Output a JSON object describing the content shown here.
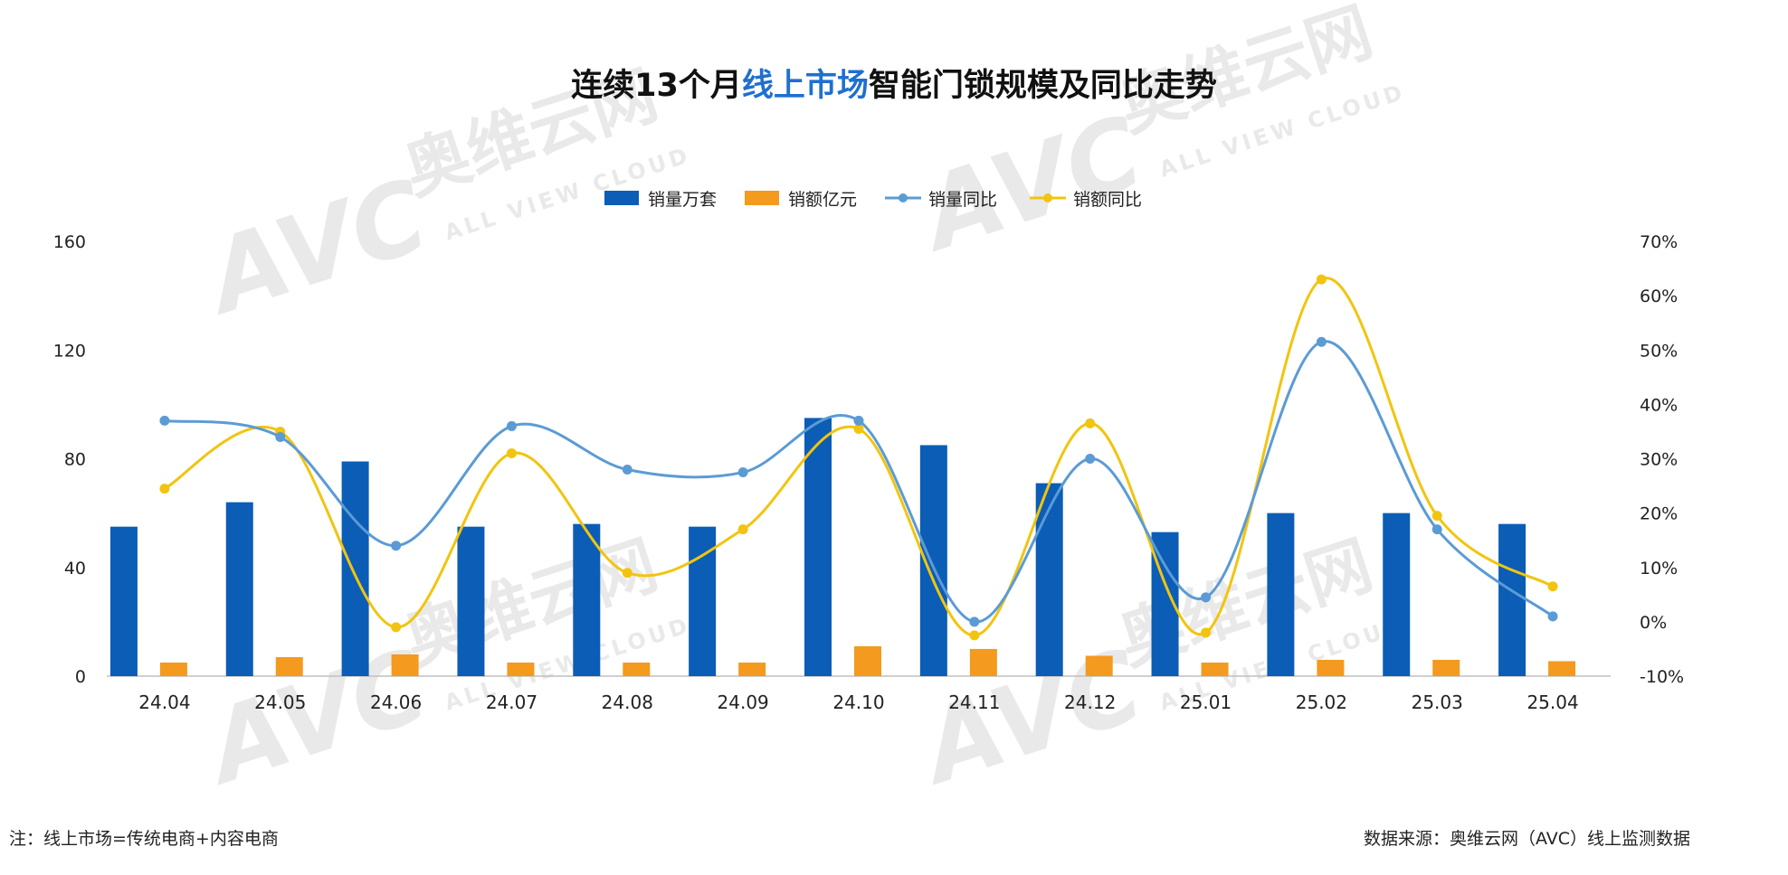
{
  "watermark": {
    "logo_text": "AVC",
    "cn_name": "奥维云网",
    "en_name": "ALL VIEW CLOUD"
  },
  "title": {
    "prefix": "连续13个月",
    "highlight": "线上市场",
    "suffix": "智能门锁规模及同比走势",
    "highlight_color": "#1f6fd0",
    "color": "#111111"
  },
  "footer": {
    "note": "注：线上市场=传统电商+内容电商",
    "source": "数据来源：奥维云网（AVC）线上监测数据"
  },
  "colors": {
    "vol_bar": "#0b5db6",
    "amt_bar": "#f39a1f",
    "vol_yoy": "#5b9bd5",
    "amt_yoy": "#f2c40f",
    "axis_text": "#222222",
    "axis_line": "#bfbfbf"
  },
  "chart_data": {
    "type": "bar",
    "categories": [
      "24.04",
      "24.05",
      "24.06",
      "24.07",
      "24.08",
      "24.09",
      "24.10",
      "24.11",
      "24.12",
      "25.01",
      "25.02",
      "25.03",
      "25.04"
    ],
    "ylim_left": [
      0,
      160
    ],
    "yticks_left": [
      0,
      40,
      80,
      120,
      160
    ],
    "ylim_right": [
      -10,
      70
    ],
    "yticks_right": [
      -10,
      0,
      10,
      20,
      30,
      40,
      50,
      60,
      70
    ],
    "yticks_right_format": "%",
    "legend_position": "top-center",
    "grid": false,
    "series": [
      {
        "name": "销量万套",
        "kind": "bar",
        "axis": "left",
        "values": [
          55,
          64,
          79,
          55,
          56,
          55,
          95,
          85,
          71,
          53,
          60,
          60,
          56
        ]
      },
      {
        "name": "销额亿元",
        "kind": "bar",
        "axis": "left",
        "values": [
          5,
          7,
          8,
          5,
          5,
          5,
          11,
          10,
          7.5,
          5,
          6,
          6,
          5.5
        ]
      },
      {
        "name": "销量同比",
        "kind": "line",
        "axis": "right",
        "values": [
          37,
          34,
          14,
          36,
          28,
          27.5,
          37,
          0,
          30,
          4.5,
          51.5,
          17,
          1
        ]
      },
      {
        "name": "销额同比",
        "kind": "line",
        "axis": "right",
        "values": [
          24.5,
          35,
          -1,
          31,
          9,
          17,
          35.5,
          -2.5,
          36.5,
          -2,
          63,
          19.5,
          6.5
        ]
      }
    ]
  }
}
